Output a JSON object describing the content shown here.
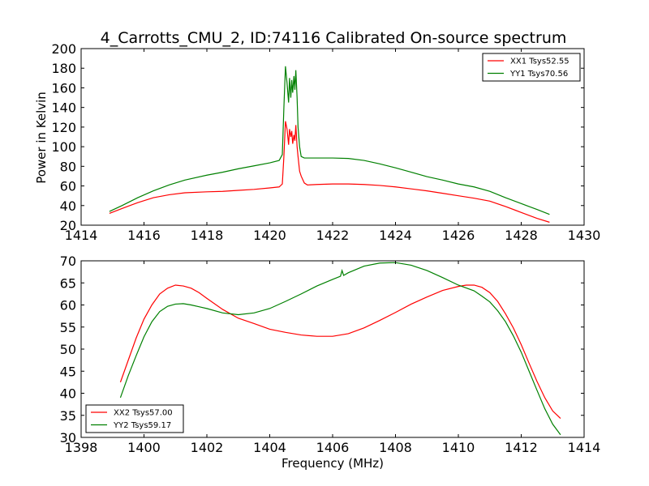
{
  "chart_data": {
    "title": "4_Carrotts_CMU_2, ID:74116 Calibrated On-source spectrum",
    "ylabel": "Power in Kelvin",
    "xlabel": "Frequency (MHz)",
    "panels": [
      {
        "type": "line",
        "xlim": [
          1414,
          1430
        ],
        "ylim": [
          20,
          200
        ],
        "xticks": [
          1414,
          1416,
          1418,
          1420,
          1422,
          1424,
          1426,
          1428,
          1430
        ],
        "yticks": [
          20,
          40,
          60,
          80,
          100,
          120,
          140,
          160,
          180,
          200
        ],
        "legend_position": "top-right",
        "series": [
          {
            "name": "XX1 Tsys52.55",
            "color": "#ff0000",
            "x": [
              1414.9,
              1415.3,
              1415.8,
              1416.3,
              1416.8,
              1417.3,
              1418,
              1418.5,
              1419,
              1419.5,
              1420,
              1420.3,
              1420.4,
              1420.45,
              1420.5,
              1420.55,
              1420.6,
              1420.63,
              1420.67,
              1420.7,
              1420.73,
              1420.77,
              1420.8,
              1420.83,
              1420.87,
              1420.9,
              1420.95,
              1421,
              1421.1,
              1421.2,
              1421.5,
              1422,
              1422.5,
              1423,
              1423.5,
              1424,
              1424.5,
              1425,
              1425.5,
              1426,
              1426.5,
              1427,
              1427.5,
              1428,
              1428.5,
              1428.9
            ],
            "values": [
              32,
              37,
              43,
              48,
              51,
              53,
              54,
              54.5,
              55.5,
              56.5,
              58,
              59,
              62,
              90,
              126,
              118,
              102,
              118,
              110,
              116,
              103,
              112,
              106,
              122,
              100,
              90,
              75,
              70,
              63,
              61,
              61.5,
              62,
              62,
              61.5,
              60.5,
              59,
              57,
              55,
              52.5,
              50,
              47.5,
              44.5,
              39,
              33,
              27,
              23
            ]
          },
          {
            "name": "YY1 Tsys70.56",
            "color": "#008000",
            "x": [
              1414.9,
              1415.3,
              1415.8,
              1416.3,
              1416.8,
              1417.3,
              1418,
              1418.5,
              1419,
              1419.5,
              1420,
              1420.3,
              1420.4,
              1420.45,
              1420.5,
              1420.55,
              1420.6,
              1420.63,
              1420.67,
              1420.7,
              1420.73,
              1420.77,
              1420.8,
              1420.83,
              1420.87,
              1420.9,
              1420.95,
              1421,
              1421.1,
              1421.2,
              1421.5,
              1422,
              1422.5,
              1423,
              1423.5,
              1424,
              1424.5,
              1425,
              1425.5,
              1426,
              1426.5,
              1427,
              1427.5,
              1428,
              1428.5,
              1428.9
            ],
            "values": [
              34,
              40,
              48,
              55,
              61,
              66,
              71,
              74,
              77.5,
              80.5,
              83.5,
              86,
              92,
              140,
              182,
              165,
              145,
              170,
              150,
              168,
              155,
              172,
              158,
              178,
              150,
              120,
              100,
              90,
              88.5,
              88.5,
              88.5,
              88.5,
              88,
              86,
              82.5,
              78.5,
              74,
              69.5,
              66,
              62,
              59,
              54.5,
              48,
              42,
              36,
              31
            ]
          }
        ]
      },
      {
        "type": "line",
        "xlim": [
          1398,
          1414
        ],
        "ylim": [
          30,
          70
        ],
        "xticks": [
          1398,
          1400,
          1402,
          1404,
          1406,
          1408,
          1410,
          1412,
          1414
        ],
        "yticks": [
          30,
          35,
          40,
          45,
          50,
          55,
          60,
          65,
          70
        ],
        "legend_position": "bottom-left",
        "series": [
          {
            "name": "XX2 Tsys57.00",
            "color": "#ff0000",
            "x": [
              1399.25,
              1399.5,
              1399.75,
              1400,
              1400.25,
              1400.5,
              1400.75,
              1401,
              1401.25,
              1401.5,
              1401.75,
              1402,
              1402.5,
              1403,
              1403.5,
              1404,
              1404.5,
              1405,
              1405.5,
              1406,
              1406.5,
              1407,
              1407.5,
              1408,
              1408.5,
              1409,
              1409.5,
              1410,
              1410.25,
              1410.5,
              1410.75,
              1411,
              1411.25,
              1411.5,
              1411.75,
              1412,
              1412.25,
              1412.5,
              1412.75,
              1413,
              1413.25
            ],
            "values": [
              42.5,
              47.5,
              52.5,
              56.8,
              60,
              62.5,
              63.8,
              64.5,
              64.3,
              63.8,
              62.8,
              61.5,
              59,
              57,
              55.8,
              54.5,
              53.8,
              53.2,
              52.9,
              52.9,
              53.5,
              54.8,
              56.5,
              58.3,
              60.2,
              61.8,
              63.3,
              64.2,
              64.5,
              64.5,
              64,
              62.8,
              60.8,
              58,
              54.8,
              51,
              46.8,
              42.7,
              39,
              36,
              34.3
            ]
          },
          {
            "name": "YY2 Tsys59.17",
            "color": "#008000",
            "x": [
              1399.25,
              1399.5,
              1399.75,
              1400,
              1400.25,
              1400.5,
              1400.75,
              1401,
              1401.25,
              1401.5,
              1401.75,
              1402,
              1402.5,
              1403,
              1403.5,
              1404,
              1404.5,
              1405,
              1405.5,
              1406,
              1406.25,
              1406.3,
              1406.35,
              1406.5,
              1407,
              1407.5,
              1408,
              1408.5,
              1409,
              1409.5,
              1410,
              1410.5,
              1410.75,
              1411,
              1411.25,
              1411.5,
              1411.75,
              1412,
              1412.25,
              1412.5,
              1412.75,
              1413,
              1413.25
            ],
            "values": [
              39,
              44,
              48.5,
              52.8,
              56.2,
              58.5,
              59.7,
              60.2,
              60.3,
              60,
              59.6,
              59.2,
              58.2,
              57.8,
              58.2,
              59.2,
              60.8,
              62.5,
              64.3,
              65.8,
              66.5,
              67.8,
              66.7,
              67.3,
              68.8,
              69.5,
              69.6,
              69,
              67.8,
              66.2,
              64.5,
              63.2,
              62,
              60.7,
              58.7,
              56.2,
              53,
              49.3,
              45,
              40.7,
              36.5,
              33,
              30.6
            ]
          }
        ]
      }
    ]
  }
}
